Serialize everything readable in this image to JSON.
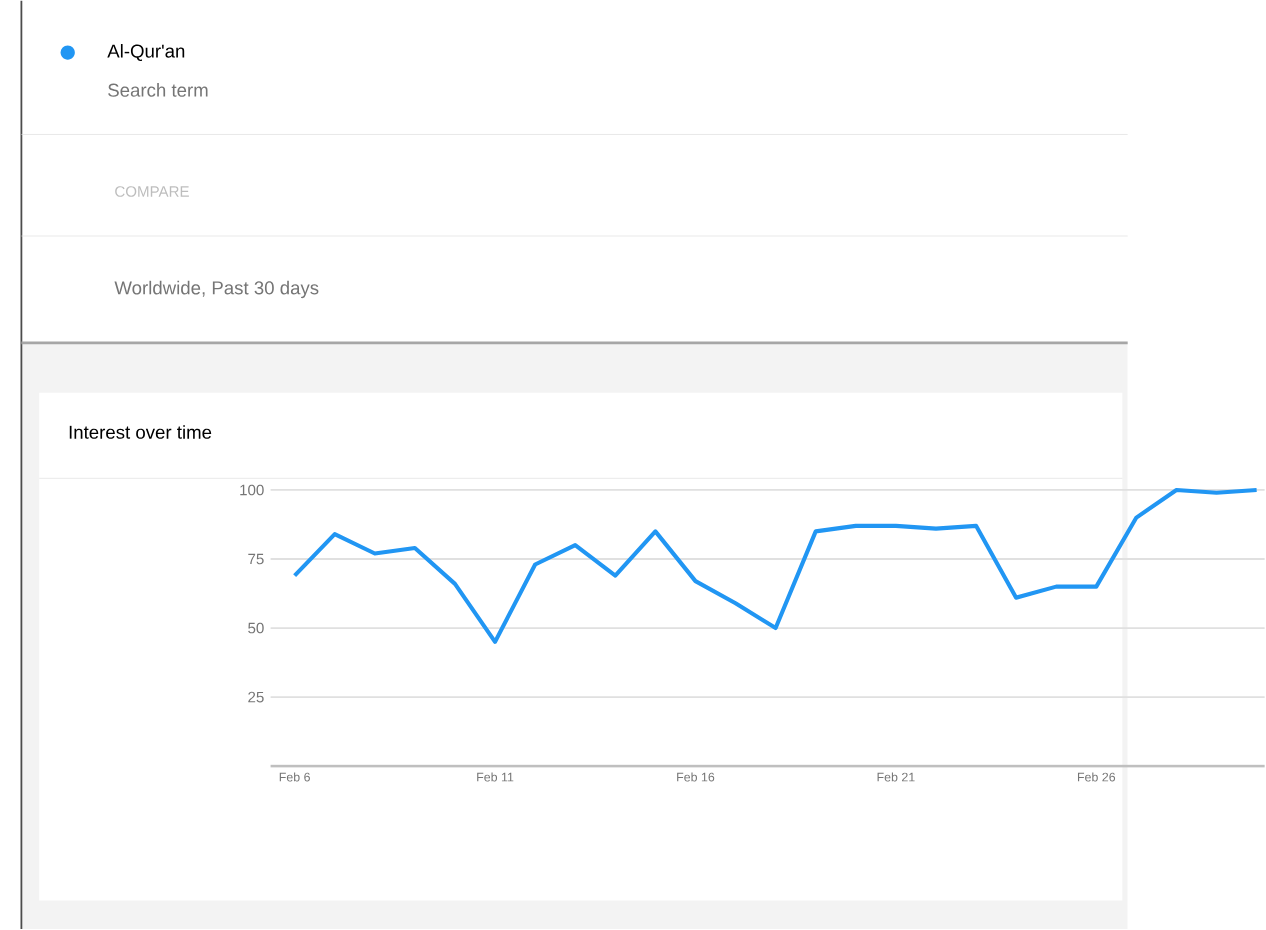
{
  "chart_data": {
    "type": "line",
    "title": "Interest over time",
    "annotations": [
      "Search term",
      "COMPARE",
      "Worldwide, Past 30 days"
    ],
    "categories": [
      "Feb 6",
      null,
      null,
      null,
      null,
      "Feb 11",
      null,
      null,
      null,
      null,
      "Feb 16",
      null,
      null,
      null,
      null,
      "Feb 21",
      null,
      null,
      null,
      null,
      "Feb 26",
      null,
      null,
      null,
      null
    ],
    "series": [
      {
        "name": "Al-Qur'an",
        "color": "#2196f3",
        "values": [
          69,
          84,
          77,
          79,
          66,
          45,
          73,
          80,
          69,
          85,
          67,
          59,
          50,
          85,
          87,
          87,
          86,
          87,
          61,
          65,
          65,
          90,
          100,
          99,
          100
        ]
      }
    ],
    "ylim": [
      0,
      100
    ],
    "yticks": [
      25,
      50,
      75,
      100
    ],
    "grid": "y",
    "legend": "top left",
    "marker": "none",
    "line_style": "solid"
  }
}
